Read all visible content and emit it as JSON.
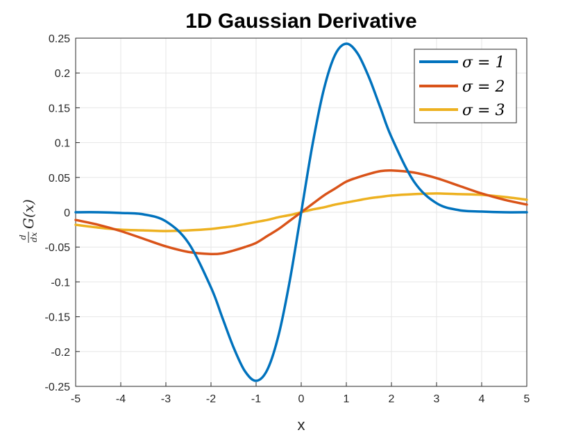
{
  "chart_data": {
    "type": "line",
    "title": "1D Gaussian Derivative",
    "xlabel": "x",
    "ylabel": "d/dx G(x)",
    "ylabel_parts": {
      "numerator": "d",
      "denominator": "dx",
      "main": "G(x)"
    },
    "xlim": [
      -5,
      5
    ],
    "ylim": [
      -0.25,
      0.25
    ],
    "x_ticks": [
      -5,
      -4,
      -3,
      -2,
      -1,
      0,
      1,
      2,
      3,
      4,
      5
    ],
    "x_tick_labels": [
      "-5",
      "-4",
      "-3",
      "-2",
      "-1",
      "0",
      "1",
      "2",
      "3",
      "4",
      "5"
    ],
    "y_ticks": [
      -0.25,
      -0.2,
      -0.15,
      -0.1,
      -0.05,
      0,
      0.05,
      0.1,
      0.15,
      0.2,
      0.25
    ],
    "y_tick_labels": [
      "-0.25",
      "-0.2",
      "-0.15",
      "-0.1",
      "-0.05",
      "0",
      "0.05",
      "0.1",
      "0.15",
      "0.2",
      "0.25"
    ],
    "grid": true,
    "legend_position": "top-right",
    "x": [
      -5,
      -4.5,
      -4,
      -3.5,
      -3,
      -2.5,
      -2,
      -1.75,
      -1.5,
      -1.25,
      -1,
      -0.75,
      -0.5,
      -0.25,
      0,
      0.25,
      0.5,
      0.75,
      1,
      1.25,
      1.5,
      1.75,
      2,
      2.5,
      3,
      3.5,
      4,
      4.5,
      5
    ],
    "series": [
      {
        "name": "σ = 1",
        "color": "#0072BD",
        "values": [
          0,
          0,
          -0.001,
          -0.003,
          -0.013,
          -0.044,
          -0.108,
          -0.151,
          -0.194,
          -0.228,
          -0.242,
          -0.226,
          -0.176,
          -0.097,
          0,
          0.097,
          0.176,
          0.226,
          0.242,
          0.228,
          0.194,
          0.151,
          0.108,
          0.044,
          0.013,
          0.003,
          0.001,
          0,
          0
        ]
      },
      {
        "name": "σ = 2",
        "color": "#D95319",
        "values": [
          -0.011,
          -0.018,
          -0.027,
          -0.038,
          -0.049,
          -0.057,
          -0.06,
          -0.059,
          -0.055,
          -0.05,
          -0.044,
          -0.034,
          -0.024,
          -0.012,
          0,
          0.012,
          0.024,
          0.034,
          0.044,
          0.05,
          0.055,
          0.059,
          0.06,
          0.057,
          0.049,
          0.038,
          0.027,
          0.018,
          0.011
        ]
      },
      {
        "name": "σ = 3",
        "color": "#EDB120",
        "values": [
          -0.018,
          -0.022,
          -0.025,
          -0.026,
          -0.027,
          -0.026,
          -0.024,
          -0.022,
          -0.02,
          -0.017,
          -0.014,
          -0.011,
          -0.007,
          -0.004,
          0,
          0.004,
          0.007,
          0.011,
          0.014,
          0.017,
          0.02,
          0.022,
          0.024,
          0.026,
          0.027,
          0.026,
          0.025,
          0.022,
          0.018
        ]
      }
    ]
  }
}
